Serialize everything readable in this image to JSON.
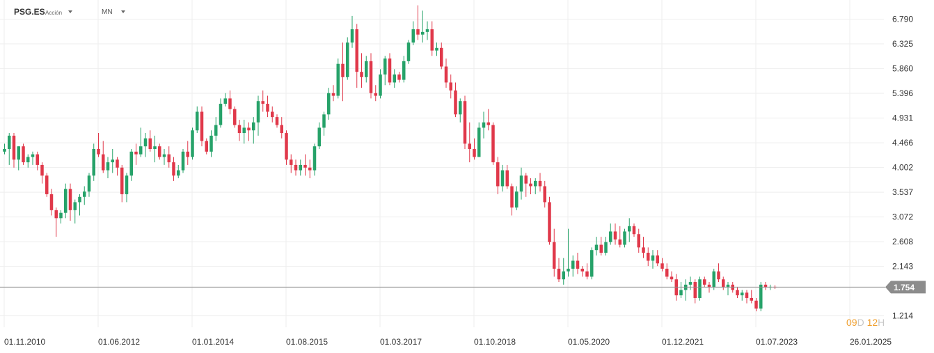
{
  "header": {
    "symbol": "PSG.ES",
    "symbol_type": "Acción",
    "timeframe": "MN"
  },
  "countdown": {
    "days": "09",
    "days_unit": "D",
    "hours": "12",
    "hours_unit": "H"
  },
  "colors": {
    "up": "#26a269",
    "down": "#e0384a",
    "grid": "#eeeeee",
    "price_line": "#8c8c8c",
    "price_tag": "#8c8c8c"
  },
  "chart_data": {
    "type": "candlestick",
    "current_price": 1.754,
    "current_price_label": "1.754",
    "y_ticks": [
      "6.790",
      "6.325",
      "5.860",
      "5.396",
      "4.931",
      "4.466",
      "4.002",
      "3.537",
      "3.072",
      "2.608",
      "2.143",
      "1.214"
    ],
    "x_ticks": [
      "01.11.2010",
      "01.06.2012",
      "01.01.2014",
      "01.08.2015",
      "01.03.2017",
      "01.10.2018",
      "01.05.2020",
      "01.12.2021",
      "01.07.2023",
      "26.01.2025"
    ],
    "ylim": [
      1.0,
      7.15
    ],
    "grid": true,
    "candles": [
      [
        4.3,
        4.45,
        4.25,
        4.35
      ],
      [
        4.35,
        4.65,
        4.05,
        4.6
      ],
      [
        4.6,
        4.65,
        4.0,
        4.15
      ],
      [
        4.15,
        4.4,
        3.95,
        4.4
      ],
      [
        4.4,
        4.45,
        4.05,
        4.1
      ],
      [
        4.1,
        4.25,
        4.0,
        4.2
      ],
      [
        4.2,
        4.3,
        4.05,
        4.25
      ],
      [
        4.25,
        4.3,
        3.95,
        4.05
      ],
      [
        4.05,
        4.1,
        3.7,
        3.85
      ],
      [
        3.85,
        3.9,
        3.45,
        3.5
      ],
      [
        3.5,
        3.6,
        3.1,
        3.2
      ],
      [
        3.2,
        3.25,
        2.7,
        3.05
      ],
      [
        3.05,
        3.2,
        2.95,
        3.15
      ],
      [
        3.15,
        3.7,
        3.05,
        3.6
      ],
      [
        3.6,
        3.7,
        3.0,
        3.2
      ],
      [
        3.2,
        3.4,
        2.95,
        3.35
      ],
      [
        3.35,
        3.5,
        3.1,
        3.45
      ],
      [
        3.45,
        3.65,
        3.3,
        3.55
      ],
      [
        3.55,
        3.9,
        3.45,
        3.85
      ],
      [
        3.85,
        4.45,
        3.75,
        4.35
      ],
      [
        4.35,
        4.65,
        4.2,
        4.25
      ],
      [
        4.25,
        4.5,
        3.9,
        3.95
      ],
      [
        3.95,
        4.2,
        3.8,
        4.1
      ],
      [
        4.1,
        4.35,
        3.9,
        4.15
      ],
      [
        4.15,
        4.2,
        3.85,
        4.0
      ],
      [
        4.0,
        4.05,
        3.35,
        3.5
      ],
      [
        3.5,
        3.9,
        3.35,
        3.85
      ],
      [
        3.85,
        4.35,
        3.75,
        4.3
      ],
      [
        4.3,
        4.45,
        4.05,
        4.25
      ],
      [
        4.25,
        4.75,
        4.2,
        4.4
      ],
      [
        4.4,
        4.65,
        4.2,
        4.55
      ],
      [
        4.55,
        4.7,
        4.3,
        4.35
      ],
      [
        4.35,
        4.6,
        4.1,
        4.4
      ],
      [
        4.4,
        4.45,
        4.15,
        4.2
      ],
      [
        4.2,
        4.35,
        4.05,
        4.25
      ],
      [
        4.25,
        4.4,
        4.0,
        4.1
      ],
      [
        4.1,
        4.2,
        3.75,
        3.85
      ],
      [
        3.85,
        4.05,
        3.8,
        3.95
      ],
      [
        3.95,
        4.35,
        3.9,
        4.3
      ],
      [
        4.3,
        4.5,
        4.05,
        4.2
      ],
      [
        4.2,
        4.75,
        4.15,
        4.7
      ],
      [
        4.7,
        5.15,
        4.65,
        5.05
      ],
      [
        5.05,
        5.15,
        4.4,
        4.5
      ],
      [
        4.5,
        4.55,
        4.25,
        4.3
      ],
      [
        4.3,
        4.7,
        4.2,
        4.6
      ],
      [
        4.6,
        4.95,
        4.5,
        4.8
      ],
      [
        4.8,
        5.3,
        4.75,
        5.2
      ],
      [
        5.2,
        5.4,
        5.15,
        5.3
      ],
      [
        5.3,
        5.45,
        5.0,
        5.1
      ],
      [
        5.1,
        5.15,
        4.75,
        4.8
      ],
      [
        4.8,
        4.9,
        4.5,
        4.65
      ],
      [
        4.65,
        4.9,
        4.45,
        4.75
      ],
      [
        4.75,
        4.85,
        4.5,
        4.7
      ],
      [
        4.7,
        4.95,
        4.45,
        4.85
      ],
      [
        4.85,
        5.35,
        4.6,
        5.25
      ],
      [
        5.25,
        5.45,
        5.05,
        5.2
      ],
      [
        5.2,
        5.35,
        4.95,
        5.05
      ],
      [
        5.05,
        5.15,
        4.85,
        4.95
      ],
      [
        4.95,
        5.0,
        4.75,
        4.8
      ],
      [
        4.8,
        4.95,
        4.55,
        4.65
      ],
      [
        4.65,
        4.7,
        4.05,
        4.15
      ],
      [
        4.15,
        4.25,
        3.9,
        4.05
      ],
      [
        4.05,
        4.15,
        3.85,
        3.95
      ],
      [
        3.95,
        4.15,
        3.85,
        4.05
      ],
      [
        4.05,
        4.25,
        3.85,
        4.0
      ],
      [
        4.0,
        4.15,
        3.8,
        3.95
      ],
      [
        3.95,
        4.45,
        3.85,
        4.4
      ],
      [
        4.4,
        4.85,
        4.35,
        4.75
      ],
      [
        4.75,
        5.05,
        4.6,
        5.0
      ],
      [
        5.0,
        5.5,
        4.9,
        5.4
      ],
      [
        5.4,
        5.55,
        5.25,
        5.35
      ],
      [
        5.35,
        6.05,
        5.3,
        5.95
      ],
      [
        5.95,
        6.35,
        5.25,
        5.7
      ],
      [
        5.7,
        6.45,
        5.65,
        6.35
      ],
      [
        6.35,
        6.85,
        6.25,
        6.6
      ],
      [
        6.6,
        6.7,
        5.5,
        5.8
      ],
      [
        5.8,
        6.15,
        5.5,
        5.7
      ],
      [
        5.7,
        6.1,
        5.6,
        6.0
      ],
      [
        6.0,
        6.15,
        5.3,
        5.4
      ],
      [
        5.4,
        5.55,
        5.25,
        5.35
      ],
      [
        5.35,
        5.85,
        5.3,
        5.75
      ],
      [
        5.75,
        6.1,
        5.55,
        6.05
      ],
      [
        6.05,
        6.15,
        5.55,
        5.6
      ],
      [
        5.6,
        5.85,
        5.5,
        5.75
      ],
      [
        5.75,
        5.8,
        5.6,
        5.65
      ],
      [
        5.65,
        6.1,
        5.6,
        6.0
      ],
      [
        6.0,
        6.4,
        5.95,
        6.35
      ],
      [
        6.35,
        6.75,
        6.3,
        6.6
      ],
      [
        6.6,
        7.05,
        6.4,
        6.5
      ],
      [
        6.5,
        6.95,
        6.35,
        6.55
      ],
      [
        6.55,
        6.75,
        6.4,
        6.6
      ],
      [
        6.6,
        6.75,
        6.1,
        6.2
      ],
      [
        6.2,
        6.35,
        6.1,
        6.25
      ],
      [
        6.25,
        6.35,
        5.85,
        5.9
      ],
      [
        5.9,
        6.05,
        5.5,
        5.6
      ],
      [
        5.6,
        5.75,
        5.3,
        5.45
      ],
      [
        5.45,
        5.6,
        4.95,
        5.0
      ],
      [
        5.0,
        5.3,
        4.85,
        5.25
      ],
      [
        5.25,
        5.35,
        4.35,
        4.45
      ],
      [
        4.45,
        4.85,
        4.1,
        4.35
      ],
      [
        4.35,
        4.55,
        4.15,
        4.2
      ],
      [
        4.2,
        4.85,
        4.2,
        4.75
      ],
      [
        4.75,
        5.05,
        4.55,
        4.85
      ],
      [
        4.85,
        5.1,
        4.7,
        4.8
      ],
      [
        4.8,
        4.85,
        4.05,
        4.1
      ],
      [
        4.1,
        4.2,
        3.5,
        3.65
      ],
      [
        3.65,
        4.05,
        3.55,
        3.95
      ],
      [
        3.95,
        4.05,
        3.6,
        3.65
      ],
      [
        3.65,
        3.7,
        3.1,
        3.25
      ],
      [
        3.25,
        3.65,
        3.2,
        3.55
      ],
      [
        3.55,
        4.0,
        3.4,
        3.85
      ],
      [
        3.85,
        3.9,
        3.45,
        3.7
      ],
      [
        3.7,
        3.8,
        3.5,
        3.65
      ],
      [
        3.65,
        3.8,
        3.5,
        3.75
      ],
      [
        3.75,
        3.9,
        3.55,
        3.65
      ],
      [
        3.65,
        3.75,
        3.25,
        3.35
      ],
      [
        3.35,
        3.45,
        2.55,
        2.6
      ],
      [
        2.6,
        2.85,
        1.95,
        2.1
      ],
      [
        2.1,
        2.3,
        1.85,
        1.9
      ],
      [
        1.9,
        2.3,
        1.8,
        2.05
      ],
      [
        2.05,
        2.85,
        1.95,
        2.1
      ],
      [
        2.1,
        2.35,
        1.95,
        2.25
      ],
      [
        2.25,
        2.4,
        2.0,
        2.1
      ],
      [
        2.1,
        2.15,
        1.95,
        2.05
      ],
      [
        2.05,
        2.2,
        1.9,
        1.95
      ],
      [
        1.95,
        2.5,
        1.9,
        2.45
      ],
      [
        2.45,
        2.7,
        2.35,
        2.55
      ],
      [
        2.55,
        2.7,
        2.35,
        2.4
      ],
      [
        2.4,
        2.7,
        2.35,
        2.6
      ],
      [
        2.6,
        2.95,
        2.55,
        2.8
      ],
      [
        2.8,
        2.95,
        2.55,
        2.65
      ],
      [
        2.65,
        2.9,
        2.5,
        2.55
      ],
      [
        2.55,
        2.85,
        2.5,
        2.8
      ],
      [
        2.8,
        3.05,
        2.6,
        2.9
      ],
      [
        2.9,
        2.95,
        2.7,
        2.75
      ],
      [
        2.75,
        2.85,
        2.4,
        2.5
      ],
      [
        2.5,
        2.7,
        2.3,
        2.4
      ],
      [
        2.4,
        2.5,
        2.15,
        2.25
      ],
      [
        2.25,
        2.45,
        2.1,
        2.35
      ],
      [
        2.35,
        2.45,
        2.15,
        2.2
      ],
      [
        2.2,
        2.3,
        2.05,
        2.1
      ],
      [
        2.1,
        2.2,
        1.9,
        1.95
      ],
      [
        1.95,
        2.05,
        1.85,
        1.9
      ],
      [
        1.9,
        2.0,
        1.5,
        1.6
      ],
      [
        1.6,
        1.85,
        1.55,
        1.7
      ],
      [
        1.7,
        1.9,
        1.5,
        1.8
      ],
      [
        1.8,
        1.95,
        1.7,
        1.85
      ],
      [
        1.85,
        1.9,
        1.45,
        1.55
      ],
      [
        1.55,
        1.95,
        1.5,
        1.9
      ],
      [
        1.9,
        1.95,
        1.75,
        1.8
      ],
      [
        1.8,
        1.85,
        1.65,
        1.75
      ],
      [
        1.75,
        2.1,
        1.7,
        2.05
      ],
      [
        2.05,
        2.2,
        1.85,
        1.9
      ],
      [
        1.9,
        1.95,
        1.7,
        1.75
      ],
      [
        1.75,
        1.85,
        1.6,
        1.8
      ],
      [
        1.8,
        1.85,
        1.65,
        1.7
      ],
      [
        1.7,
        1.75,
        1.55,
        1.6
      ],
      [
        1.6,
        1.7,
        1.5,
        1.65
      ],
      [
        1.65,
        1.7,
        1.45,
        1.55
      ],
      [
        1.55,
        1.7,
        1.45,
        1.5
      ],
      [
        1.5,
        1.55,
        1.3,
        1.35
      ],
      [
        1.35,
        1.85,
        1.3,
        1.8
      ],
      [
        1.8,
        1.85,
        1.7,
        1.75
      ],
      [
        1.75,
        1.8,
        1.7,
        1.76
      ],
      [
        1.76,
        1.79,
        1.72,
        1.754
      ]
    ]
  }
}
